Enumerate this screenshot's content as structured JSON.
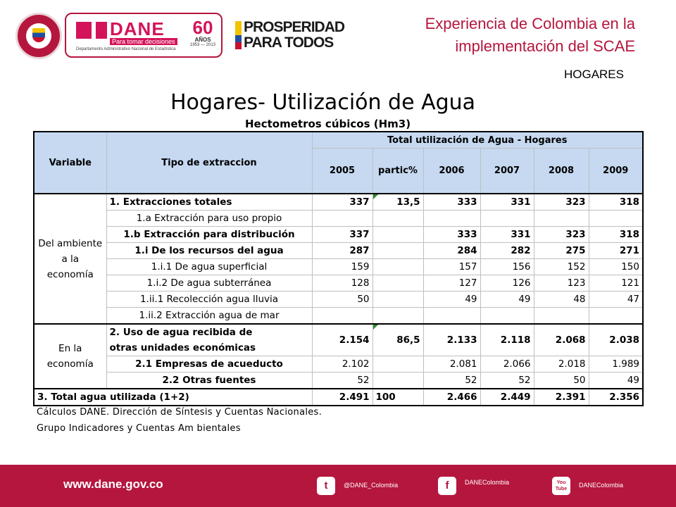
{
  "header": {
    "dane_name": "DANE",
    "dane_tagline": "Para tomar decisiones",
    "dane_full": "Departamento Administrativo Nacional de Estadística",
    "anniversary_number": "60",
    "anniversary_word": "AÑOS",
    "anniversary_years": "1953 — 2013",
    "prosperidad_line1": "PROSPERIDAD",
    "prosperidad_line2": "PARA TODOS",
    "title_line1": "Experiencia de Colombia en la",
    "title_line2": "implementación del SCAE",
    "section": "HOGARES"
  },
  "content": {
    "title": "Hogares- Utilización de Agua",
    "subtitle": "Hectometros  cúbicos (Hm3)",
    "table": {
      "col_variable": "Variable",
      "col_tipo": "Tipo de extraccion",
      "col_total": "Total utilización de Agua - Hogares",
      "years": [
        "2005",
        "partic%",
        "2006",
        "2007",
        "2008",
        "2009"
      ],
      "group1_label": "Del ambiente a la economía",
      "group2_label": "En la economía",
      "rows": [
        {
          "label": "1. Extracciones totales",
          "v": [
            "337",
            "13,5",
            "333",
            "331",
            "323",
            "318"
          ]
        },
        {
          "label": "1.a Extracción para uso propio",
          "v": [
            "",
            "",
            "",
            "",
            "",
            ""
          ]
        },
        {
          "label": "1.b Extracción para distribución",
          "v": [
            "337",
            "",
            "333",
            "331",
            "323",
            "318"
          ]
        },
        {
          "label": "1.i De los recursos del agua",
          "v": [
            "287",
            "",
            "284",
            "282",
            "275",
            "271"
          ]
        },
        {
          "label": "1.i.1 De agua superficial",
          "v": [
            "159",
            "",
            "157",
            "156",
            "152",
            "150"
          ]
        },
        {
          "label": "1.i.2 De agua subterránea",
          "v": [
            "128",
            "",
            "127",
            "126",
            "123",
            "121"
          ]
        },
        {
          "label": "1.ii.1 Recolección agua lluvia",
          "v": [
            "50",
            "",
            "49",
            "49",
            "48",
            "47"
          ]
        },
        {
          "label": "1.ii.2 Extracción agua de mar",
          "v": [
            "",
            "",
            "",
            "",
            "",
            ""
          ]
        }
      ],
      "uso_label_line1": "2. Uso de agua recibida de",
      "uso_label_line2": "otras unidades económicas",
      "uso_values": [
        "2.154",
        "86,5",
        "2.133",
        "2.118",
        "2.068",
        "2.038"
      ],
      "rows2": [
        {
          "label": "2.1 Empresas de acueducto",
          "v": [
            "2.102",
            "",
            "2.081",
            "2.066",
            "2.018",
            "1.989"
          ]
        },
        {
          "label": "2.2 Otras fuentes",
          "v": [
            "52",
            "",
            "52",
            "52",
            "50",
            "49"
          ]
        }
      ],
      "total_label": "3. Total agua utilizada (1+2)",
      "total_values": [
        "2.491",
        "100",
        "2.466",
        "2.449",
        "2.391",
        "2.356"
      ]
    },
    "note_line1": "Cálculos DANE. Dirección de Síntesis y Cuentas Nacionales.",
    "note_line2": "Grupo  Indicadores y Cuentas Am bientales"
  },
  "footer": {
    "website": "www.dane.gov.co",
    "twitter": "@DANE_Colombia",
    "facebook": "DANEColombia",
    "youtube": "DANEColombia",
    "youtube_icon_text": "You Tube"
  },
  "colors": {
    "brand": "#b5163e",
    "accent": "#d4145a",
    "table_header": "#c6d9f1"
  },
  "icons": [
    "colombia-seal-icon",
    "twitter-icon",
    "facebook-icon",
    "youtube-icon"
  ]
}
